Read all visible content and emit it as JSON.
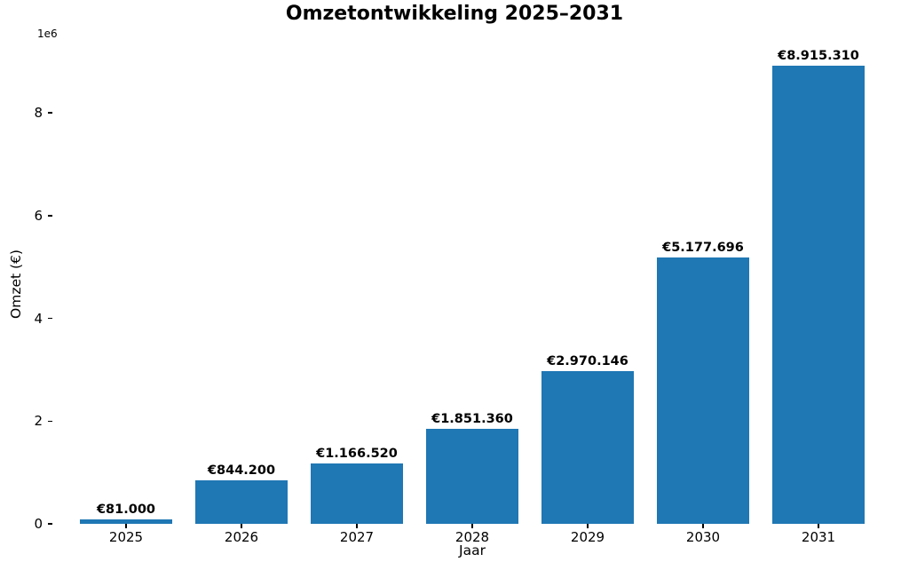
{
  "chart_data": {
    "type": "bar",
    "title": "Omzetontwikkeling 2025–2031",
    "xlabel": "Jaar",
    "ylabel": "Omzet (€)",
    "offset_text": "1e6",
    "categories": [
      "2025",
      "2026",
      "2027",
      "2028",
      "2029",
      "2030",
      "2031"
    ],
    "values": [
      81000,
      844200,
      1166520,
      1851360,
      2970146,
      5177696,
      8915310
    ],
    "bar_labels": [
      "€81.000",
      "€844.200",
      "€1.166.520",
      "€1.851.360",
      "€2.970.146",
      "€5.177.696",
      "€8.915.310"
    ],
    "yticks": [
      0,
      2,
      4,
      6,
      8
    ],
    "ytick_unit": 1000000,
    "ylim": [
      0,
      9360000
    ],
    "bar_color": "#1f77b4",
    "text_color": "#000000",
    "background_color": "#ffffff",
    "grid": false,
    "legend": null,
    "spines_visible": false
  }
}
